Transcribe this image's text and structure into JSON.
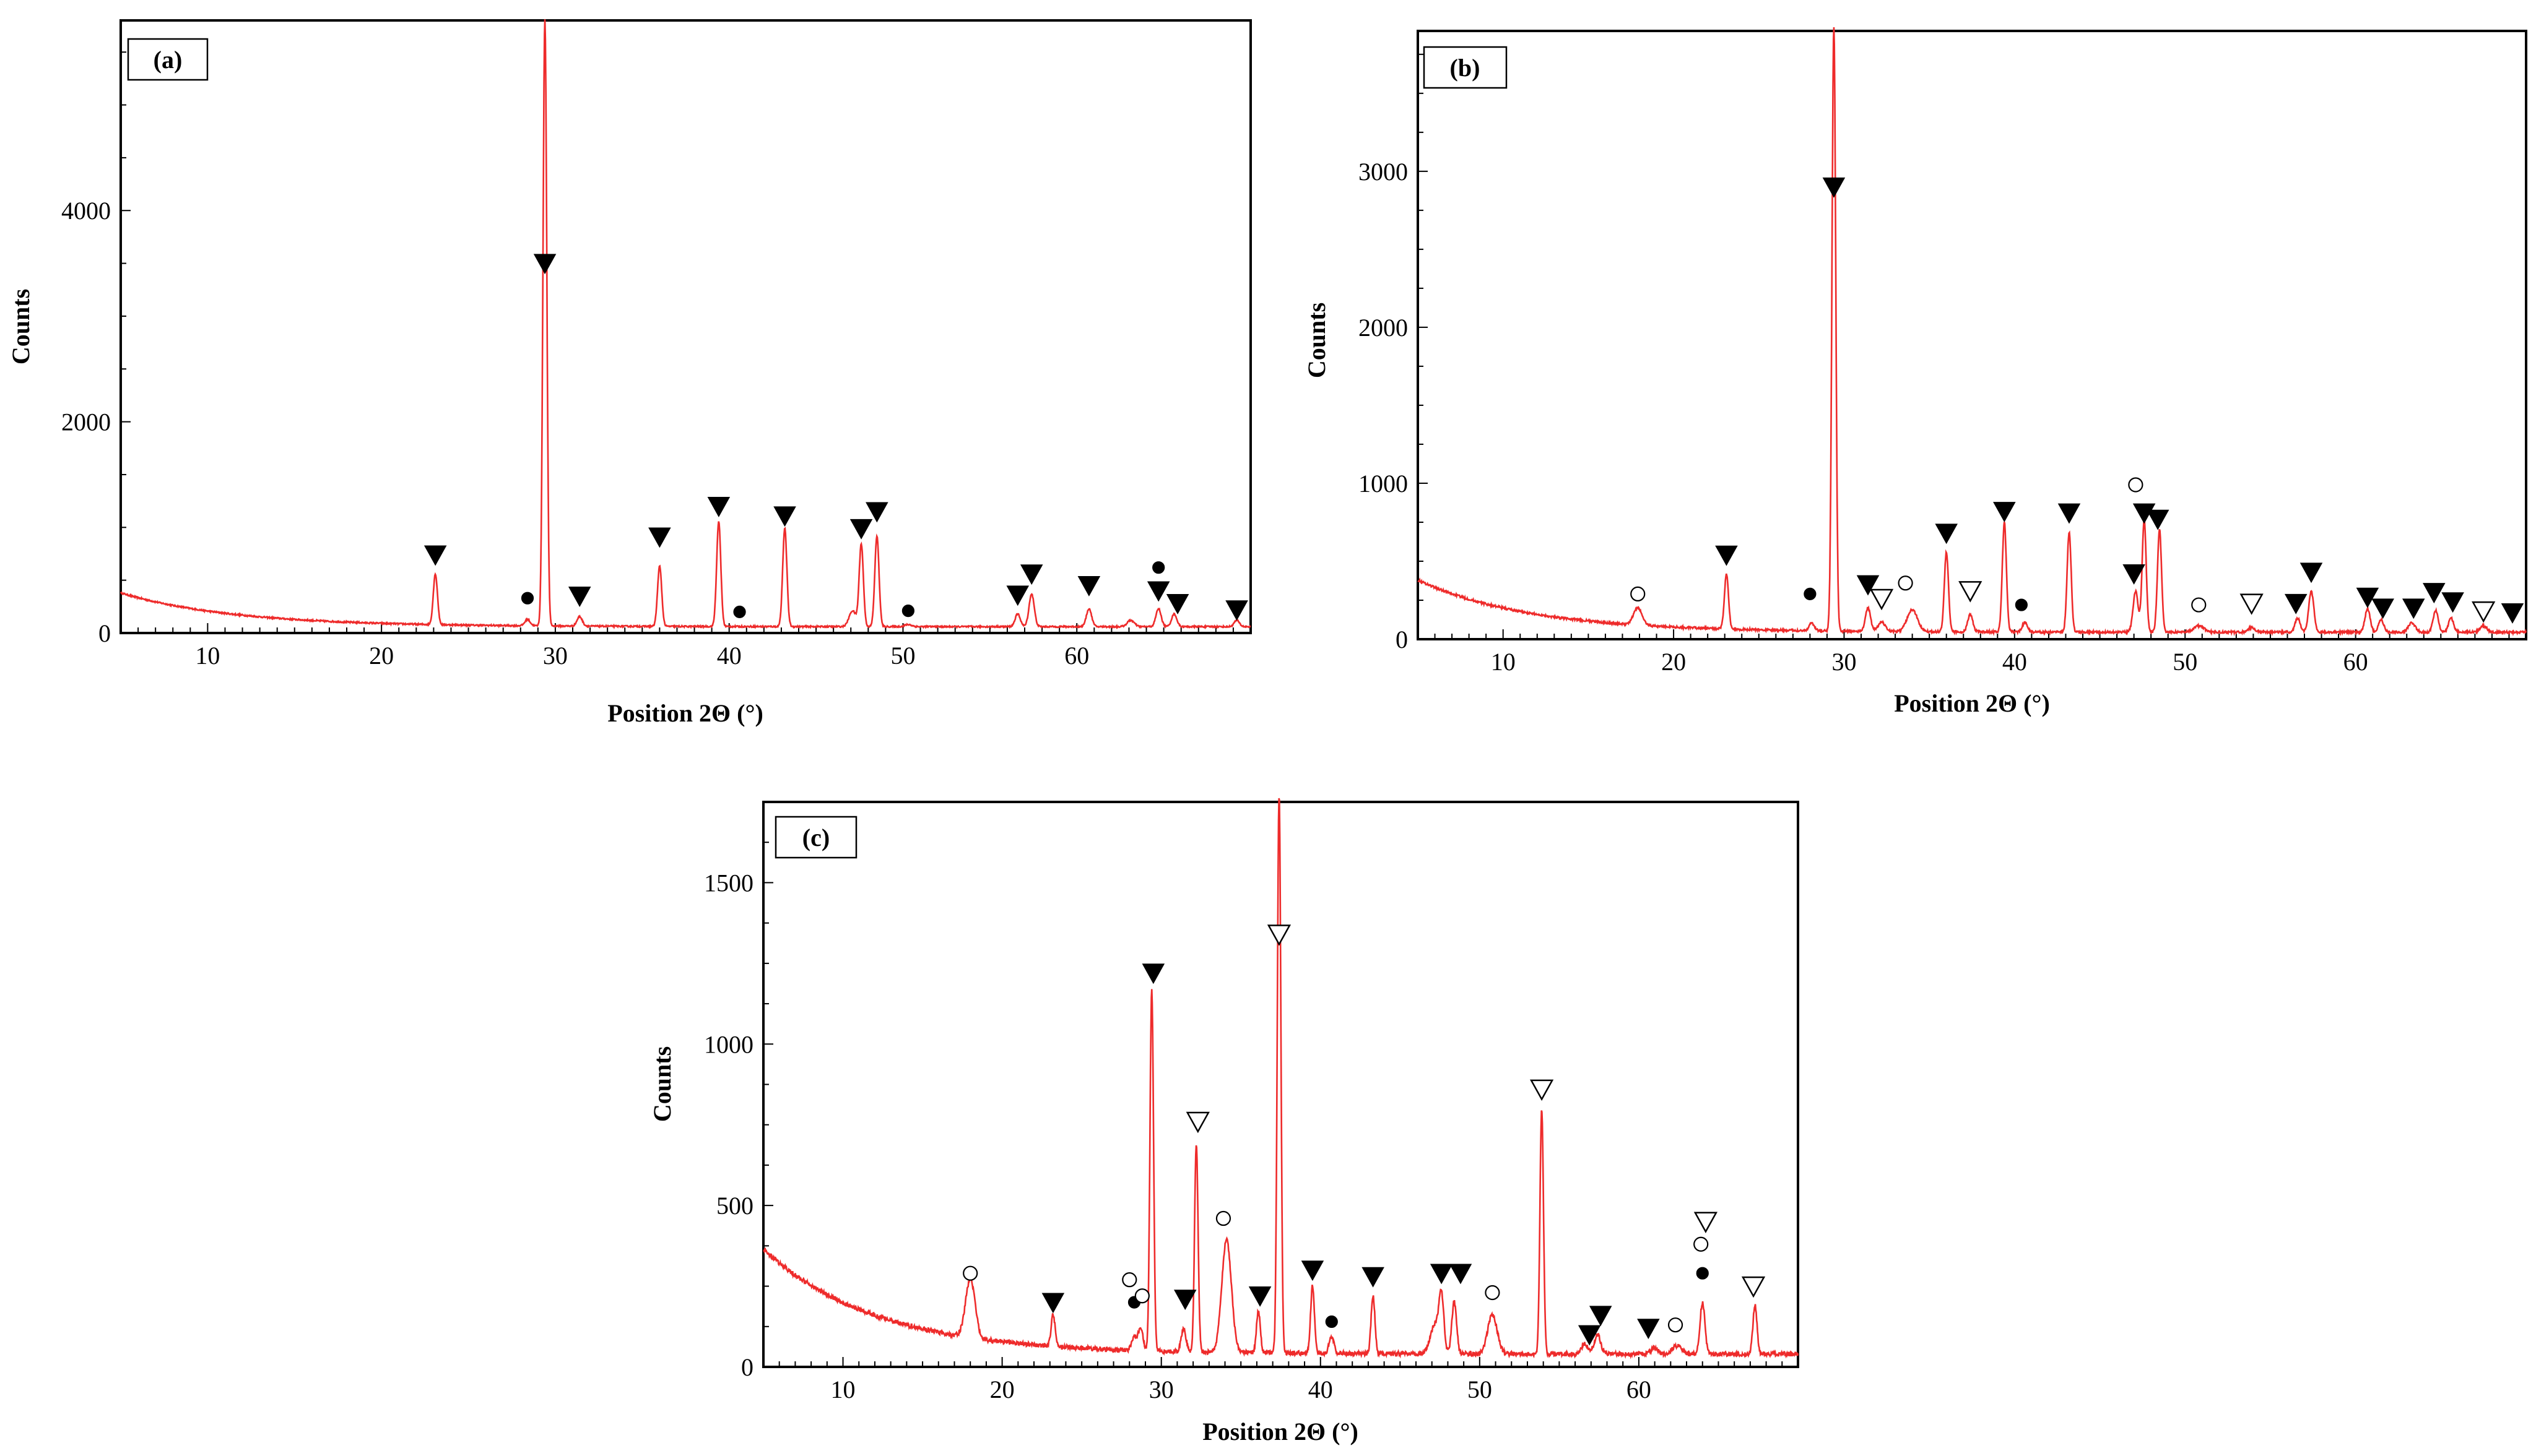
{
  "figure": {
    "colors": {
      "trace": "#ee2b2b",
      "axis": "#000000",
      "background": "#ffffff"
    },
    "marker_legend_names": {
      "filled_triangle": "marker-filled-triangle",
      "open_triangle": "marker-open-triangle",
      "filled_circle": "marker-filled-circle",
      "open_circle": "marker-open-circle"
    }
  },
  "chart_data": [
    {
      "id": "a",
      "type": "line",
      "panel_label": "(a)",
      "xlabel": "Position 2Θ (°)",
      "ylabel": "Counts",
      "xlim": [
        5,
        70
      ],
      "ylim": [
        0,
        5800
      ],
      "xticks": [
        10,
        20,
        30,
        40,
        50,
        60
      ],
      "yticks": [
        0,
        2000,
        4000
      ],
      "background": {
        "start": 380,
        "floor": 60,
        "decay": 6.5
      },
      "peaks": [
        [
          23.1,
          480,
          0.12
        ],
        [
          28.4,
          60,
          0.15
        ],
        [
          29.4,
          5750,
          0.11
        ],
        [
          31.4,
          90,
          0.15
        ],
        [
          36.0,
          570,
          0.12
        ],
        [
          39.4,
          990,
          0.12
        ],
        [
          43.2,
          930,
          0.12
        ],
        [
          47.1,
          150,
          0.2
        ],
        [
          47.6,
          780,
          0.12
        ],
        [
          48.5,
          860,
          0.12
        ],
        [
          50.3,
          20,
          0.2
        ],
        [
          56.6,
          120,
          0.15
        ],
        [
          57.4,
          310,
          0.15
        ],
        [
          60.7,
          170,
          0.15
        ],
        [
          63.1,
          60,
          0.2
        ],
        [
          64.7,
          170,
          0.15
        ],
        [
          65.6,
          120,
          0.15
        ],
        [
          69.2,
          60,
          0.15
        ]
      ],
      "markers": [
        {
          "type": "filled_triangle",
          "x": 23.1,
          "y": 740
        },
        {
          "type": "filled_circle",
          "x": 28.4,
          "y": 330
        },
        {
          "type": "filled_triangle",
          "x": 29.4,
          "y": 3500
        },
        {
          "type": "filled_triangle",
          "x": 31.4,
          "y": 350
        },
        {
          "type": "filled_triangle",
          "x": 36.0,
          "y": 910
        },
        {
          "type": "filled_triangle",
          "x": 39.4,
          "y": 1200
        },
        {
          "type": "filled_circle",
          "x": 40.6,
          "y": 200
        },
        {
          "type": "filled_triangle",
          "x": 43.2,
          "y": 1110
        },
        {
          "type": "filled_triangle",
          "x": 47.6,
          "y": 990
        },
        {
          "type": "filled_triangle",
          "x": 48.5,
          "y": 1150
        },
        {
          "type": "filled_circle",
          "x": 50.3,
          "y": 210
        },
        {
          "type": "filled_triangle",
          "x": 56.6,
          "y": 360
        },
        {
          "type": "filled_triangle",
          "x": 57.4,
          "y": 560
        },
        {
          "type": "filled_triangle",
          "x": 60.7,
          "y": 450
        },
        {
          "type": "filled_circle",
          "x": 64.7,
          "y": 620
        },
        {
          "type": "filled_triangle",
          "x": 64.7,
          "y": 400
        },
        {
          "type": "filled_triangle",
          "x": 65.8,
          "y": 280
        },
        {
          "type": "filled_triangle",
          "x": 69.2,
          "y": 220
        }
      ]
    },
    {
      "id": "b",
      "type": "line",
      "panel_label": "(b)",
      "xlabel": "Position 2Θ (°)",
      "ylabel": "Counts",
      "xlim": [
        5,
        70
      ],
      "ylim": [
        0,
        3900
      ],
      "xticks": [
        10,
        20,
        30,
        40,
        50,
        60
      ],
      "yticks": [
        0,
        1000,
        2000,
        3000
      ],
      "background": {
        "start": 380,
        "floor": 45,
        "decay": 6.5
      },
      "peaks": [
        [
          17.9,
          110,
          0.25
        ],
        [
          23.1,
          350,
          0.12
        ],
        [
          28.1,
          50,
          0.15
        ],
        [
          29.4,
          3900,
          0.11
        ],
        [
          31.4,
          150,
          0.15
        ],
        [
          32.2,
          60,
          0.2
        ],
        [
          34.0,
          140,
          0.3
        ],
        [
          36.0,
          510,
          0.12
        ],
        [
          37.4,
          110,
          0.15
        ],
        [
          39.4,
          700,
          0.12
        ],
        [
          40.6,
          60,
          0.15
        ],
        [
          43.2,
          640,
          0.12
        ],
        [
          47.1,
          260,
          0.15
        ],
        [
          47.6,
          720,
          0.12
        ],
        [
          48.5,
          660,
          0.12
        ],
        [
          50.8,
          40,
          0.3
        ],
        [
          53.9,
          30,
          0.2
        ],
        [
          56.6,
          90,
          0.15
        ],
        [
          57.4,
          260,
          0.15
        ],
        [
          60.7,
          150,
          0.15
        ],
        [
          61.5,
          80,
          0.15
        ],
        [
          63.3,
          60,
          0.2
        ],
        [
          64.7,
          140,
          0.15
        ],
        [
          65.6,
          90,
          0.15
        ],
        [
          67.5,
          40,
          0.2
        ]
      ],
      "markers": [
        {
          "type": "open_circle",
          "x": 17.9,
          "y": 290
        },
        {
          "type": "filled_triangle",
          "x": 23.1,
          "y": 540
        },
        {
          "type": "filled_circle",
          "x": 28.0,
          "y": 290
        },
        {
          "type": "filled_triangle",
          "x": 29.4,
          "y": 2900
        },
        {
          "type": "filled_triangle",
          "x": 31.4,
          "y": 350
        },
        {
          "type": "open_triangle",
          "x": 32.2,
          "y": 260
        },
        {
          "type": "open_circle",
          "x": 33.6,
          "y": 360
        },
        {
          "type": "filled_triangle",
          "x": 36.0,
          "y": 680
        },
        {
          "type": "open_triangle",
          "x": 37.4,
          "y": 310
        },
        {
          "type": "filled_triangle",
          "x": 39.4,
          "y": 820
        },
        {
          "type": "filled_circle",
          "x": 40.4,
          "y": 220
        },
        {
          "type": "filled_triangle",
          "x": 43.2,
          "y": 810
        },
        {
          "type": "open_circle",
          "x": 47.1,
          "y": 990
        },
        {
          "type": "filled_triangle",
          "x": 47.0,
          "y": 420
        },
        {
          "type": "filled_triangle",
          "x": 47.6,
          "y": 810
        },
        {
          "type": "filled_triangle",
          "x": 48.4,
          "y": 770
        },
        {
          "type": "open_circle",
          "x": 50.8,
          "y": 220
        },
        {
          "type": "open_triangle",
          "x": 53.9,
          "y": 230
        },
        {
          "type": "filled_triangle",
          "x": 56.5,
          "y": 230
        },
        {
          "type": "filled_triangle",
          "x": 57.4,
          "y": 430
        },
        {
          "type": "filled_triangle",
          "x": 60.7,
          "y": 270
        },
        {
          "type": "filled_triangle",
          "x": 61.6,
          "y": 200
        },
        {
          "type": "filled_triangle",
          "x": 63.4,
          "y": 200
        },
        {
          "type": "filled_triangle",
          "x": 64.6,
          "y": 300
        },
        {
          "type": "filled_triangle",
          "x": 65.7,
          "y": 240
        },
        {
          "type": "open_triangle",
          "x": 67.5,
          "y": 180
        },
        {
          "type": "filled_triangle",
          "x": 69.2,
          "y": 170
        }
      ]
    },
    {
      "id": "c",
      "type": "line",
      "panel_label": "(c)",
      "xlabel": "Position 2Θ (°)",
      "ylabel": "Counts",
      "xlim": [
        5,
        70
      ],
      "ylim": [
        0,
        1750
      ],
      "xticks": [
        10,
        20,
        30,
        40,
        50,
        60
      ],
      "yticks": [
        0,
        500,
        1000,
        1500
      ],
      "background": {
        "start": 365,
        "floor": 40,
        "decay": 7
      },
      "peaks": [
        [
          18.0,
          180,
          0.3
        ],
        [
          23.2,
          100,
          0.12
        ],
        [
          28.3,
          40,
          0.15
        ],
        [
          28.7,
          70,
          0.15
        ],
        [
          29.4,
          1120,
          0.11
        ],
        [
          31.4,
          70,
          0.15
        ],
        [
          32.2,
          640,
          0.11
        ],
        [
          34.1,
          350,
          0.3
        ],
        [
          36.1,
          130,
          0.12
        ],
        [
          37.4,
          1740,
          0.11
        ],
        [
          39.5,
          210,
          0.12
        ],
        [
          40.7,
          50,
          0.15
        ],
        [
          43.3,
          180,
          0.12
        ],
        [
          47.2,
          90,
          0.3
        ],
        [
          47.6,
          160,
          0.15
        ],
        [
          48.4,
          160,
          0.15
        ],
        [
          50.8,
          120,
          0.3
        ],
        [
          53.9,
          760,
          0.11
        ],
        [
          56.6,
          30,
          0.2
        ],
        [
          57.4,
          60,
          0.2
        ],
        [
          61.0,
          20,
          0.2
        ],
        [
          62.4,
          25,
          0.3
        ],
        [
          64.0,
          160,
          0.15
        ],
        [
          67.3,
          150,
          0.13
        ]
      ],
      "markers": [
        {
          "type": "open_circle",
          "x": 18.0,
          "y": 290
        },
        {
          "type": "filled_triangle",
          "x": 23.2,
          "y": 200
        },
        {
          "type": "open_circle",
          "x": 28.0,
          "y": 270
        },
        {
          "type": "filled_circle",
          "x": 28.3,
          "y": 200
        },
        {
          "type": "open_circle",
          "x": 28.8,
          "y": 220
        },
        {
          "type": "filled_triangle",
          "x": 29.5,
          "y": 1220
        },
        {
          "type": "filled_triangle",
          "x": 31.5,
          "y": 210
        },
        {
          "type": "open_triangle",
          "x": 32.3,
          "y": 760
        },
        {
          "type": "open_circle",
          "x": 33.9,
          "y": 460
        },
        {
          "type": "filled_triangle",
          "x": 36.2,
          "y": 220
        },
        {
          "type": "open_triangle",
          "x": 37.4,
          "y": 1340
        },
        {
          "type": "filled_triangle",
          "x": 39.5,
          "y": 300
        },
        {
          "type": "filled_circle",
          "x": 40.7,
          "y": 140
        },
        {
          "type": "filled_triangle",
          "x": 43.3,
          "y": 280
        },
        {
          "type": "filled_triangle",
          "x": 47.6,
          "y": 290
        },
        {
          "type": "filled_triangle",
          "x": 48.8,
          "y": 290
        },
        {
          "type": "open_circle",
          "x": 50.8,
          "y": 230
        },
        {
          "type": "open_triangle",
          "x": 53.9,
          "y": 860
        },
        {
          "type": "filled_triangle",
          "x": 56.9,
          "y": 100
        },
        {
          "type": "filled_triangle",
          "x": 57.6,
          "y": 160
        },
        {
          "type": "filled_triangle",
          "x": 60.6,
          "y": 120
        },
        {
          "type": "open_circle",
          "x": 62.3,
          "y": 130
        },
        {
          "type": "open_triangle",
          "x": 64.2,
          "y": 450
        },
        {
          "type": "open_circle",
          "x": 63.9,
          "y": 380
        },
        {
          "type": "filled_circle",
          "x": 64.0,
          "y": 290
        },
        {
          "type": "open_triangle",
          "x": 67.2,
          "y": 250
        }
      ]
    }
  ]
}
